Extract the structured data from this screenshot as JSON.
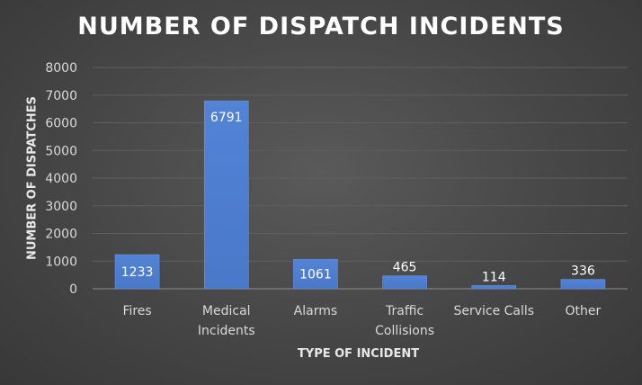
{
  "chart_data": {
    "type": "bar",
    "title": "NUMBER OF DISPATCH INCIDENTS",
    "xlabel": "TYPE OF INCIDENT",
    "ylabel": "NUMBER OF DISPATCHES",
    "categories": [
      [
        "Fires"
      ],
      [
        "Medical",
        "Incidents"
      ],
      [
        "Alarms"
      ],
      [
        "Traffic",
        "Collisions"
      ],
      [
        "Service Calls"
      ],
      [
        "Other"
      ]
    ],
    "values": [
      1233,
      6791,
      1061,
      465,
      114,
      336
    ],
    "ylim": [
      0,
      8000
    ],
    "yticks": [
      0,
      1000,
      2000,
      3000,
      4000,
      5000,
      6000,
      7000,
      8000
    ],
    "grid": true,
    "legend": "none",
    "bar_color": "#4a78c9",
    "background": "#4a4a4a"
  }
}
